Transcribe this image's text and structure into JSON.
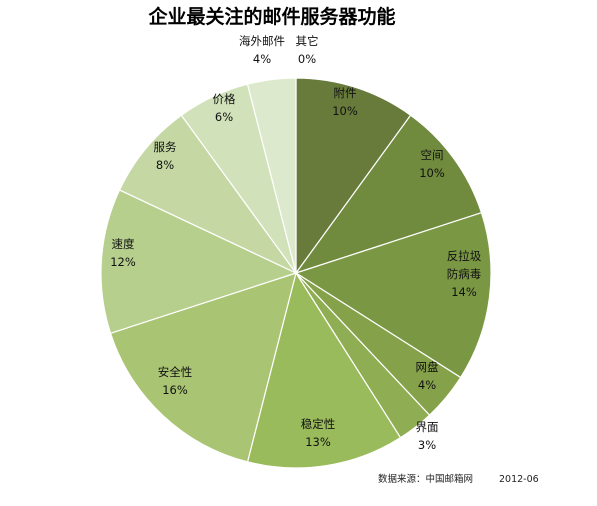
{
  "chart_data": {
    "type": "pie",
    "title": "企业最关注的邮件服务器功能",
    "source": "数据来源：中国邮箱网",
    "date": "2012-06",
    "slices": [
      {
        "label": [
          "附件"
        ],
        "value_label": "10%",
        "value": 10,
        "color": "#687b3b"
      },
      {
        "label": [
          "空间"
        ],
        "value_label": "10%",
        "value": 10,
        "color": "#708a3e"
      },
      {
        "label": [
          "反拉圾",
          "防病毒"
        ],
        "value_label": "14%",
        "value": 14,
        "color": "#7a9843"
      },
      {
        "label": [
          "网盘"
        ],
        "value_label": "4%",
        "value": 4,
        "color": "#85a24a"
      },
      {
        "label": [
          "界面"
        ],
        "value_label": "3%",
        "value": 3,
        "color": "#8fad52"
      },
      {
        "label": [
          "稳定性"
        ],
        "value_label": "13%",
        "value": 13,
        "color": "#9abb5b"
      },
      {
        "label": [
          "安全性"
        ],
        "value_label": "16%",
        "value": 16,
        "color": "#a9c472"
      },
      {
        "label": [
          "速度"
        ],
        "value_label": "12%",
        "value": 12,
        "color": "#b7cf8c"
      },
      {
        "label": [
          "服务"
        ],
        "value_label": "8%",
        "value": 8,
        "color": "#c5d8a4"
      },
      {
        "label": [
          "价格"
        ],
        "value_label": "6%",
        "value": 6,
        "color": "#d1e1b9"
      },
      {
        "label": [
          "海外邮件"
        ],
        "value_label": "4%",
        "value": 4,
        "color": "#dde9cc"
      },
      {
        "label": [
          "其它"
        ],
        "value_label": "0%",
        "value": 0,
        "color": "#e8f0dc"
      }
    ]
  }
}
